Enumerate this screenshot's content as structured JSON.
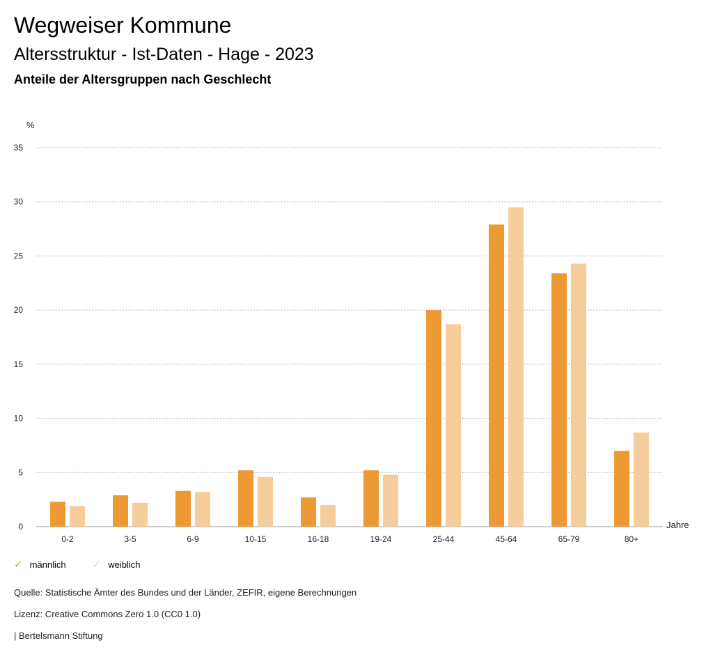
{
  "header": {
    "title": "Wegweiser Kommune",
    "subtitle": "Altersstruktur - Ist-Daten - Hage - 2023",
    "description": "Anteile der Altersgruppen nach Geschlecht"
  },
  "colors": {
    "male": "#ED9A35",
    "female": "#F5CD9C",
    "grid": "#BBBBBB"
  },
  "chart_data": {
    "type": "bar",
    "title": "Anteile der Altersgruppen nach Geschlecht",
    "xlabel": "Jahre",
    "ylabel": "%",
    "ylim": [
      0,
      35
    ],
    "yticks": [
      "0",
      "5",
      "10",
      "15",
      "20",
      "25",
      "30",
      "35"
    ],
    "ytick_values": [
      0,
      5,
      10,
      15,
      20,
      25,
      30,
      35
    ],
    "categories": [
      "0-2",
      "3-5",
      "6-9",
      "10-15",
      "16-18",
      "19-24",
      "25-44",
      "45-64",
      "65-79",
      "80+"
    ],
    "series": [
      {
        "name": "männlich",
        "values": [
          2.3,
          2.9,
          3.3,
          5.2,
          2.7,
          5.2,
          20.0,
          27.9,
          23.4,
          7.0
        ]
      },
      {
        "name": "weiblich",
        "values": [
          1.9,
          2.2,
          3.2,
          4.6,
          2.0,
          4.8,
          18.7,
          29.5,
          24.3,
          8.7
        ]
      }
    ],
    "grid": true,
    "legend": "bottom-left"
  },
  "legend": {
    "male_label": "männlich",
    "female_label": "weiblich",
    "check_symbol": "✓"
  },
  "footer": {
    "source": "Quelle: Statistische Ämter des Bundes und der Länder, ZEFIR, eigene Berechnungen",
    "license": "Lizenz: Creative Commons Zero 1.0 (CC0 1.0)",
    "publisher": "| Bertelsmann Stiftung"
  }
}
